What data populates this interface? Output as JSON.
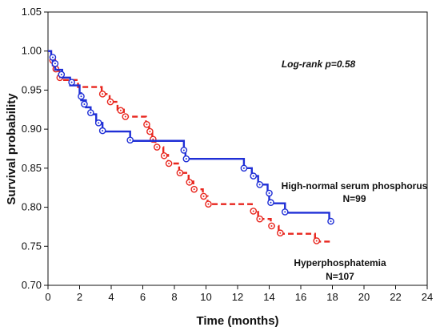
{
  "chart_data": {
    "type": "line",
    "subtype": "kaplan-meier step",
    "xlabel": "Time (months)",
    "ylabel": "Survival probability",
    "xlim": [
      0,
      24
    ],
    "ylim": [
      0.7,
      1.05
    ],
    "x_ticks": [
      "0",
      "2",
      "4",
      "6",
      "8",
      "10",
      "12",
      "14",
      "16",
      "18",
      "20",
      "22",
      "24"
    ],
    "y_ticks": [
      "0.70",
      "0.75",
      "0.80",
      "0.85",
      "0.90",
      "0.95",
      "1.00",
      "1.05"
    ],
    "grid": false,
    "annotations": {
      "pvalue": "Log-rank p=0.58",
      "series1_label_line1": "High-normal serum phosphorus",
      "series1_label_line2": "N=99",
      "series2_label_line1": "Hyperphosphatemia",
      "series2_label_line2": "N=107"
    },
    "series": [
      {
        "color": "#1f2fd6",
        "line_style": "solid",
        "steps": [
          [
            0,
            1.0
          ],
          [
            0.2,
            0.99
          ],
          [
            0.3,
            0.982
          ],
          [
            0.45,
            0.976
          ],
          [
            0.9,
            0.966
          ],
          [
            1.4,
            0.956
          ],
          [
            2.0,
            0.946
          ],
          [
            2.1,
            0.937
          ],
          [
            2.4,
            0.928
          ],
          [
            2.7,
            0.919
          ],
          [
            3.05,
            0.908
          ],
          [
            3.45,
            0.897
          ],
          [
            5.2,
            0.885
          ],
          [
            8.6,
            0.873
          ],
          [
            8.7,
            0.862
          ],
          [
            12.4,
            0.85
          ],
          [
            12.9,
            0.84
          ],
          [
            13.3,
            0.829
          ],
          [
            13.9,
            0.818
          ],
          [
            14.0,
            0.805
          ],
          [
            15.0,
            0.793
          ],
          [
            17.8,
            0.782
          ]
        ],
        "end_x": 18.0,
        "censored": [
          [
            0.3,
            0.992
          ],
          [
            0.45,
            0.984
          ],
          [
            0.85,
            0.97
          ],
          [
            1.5,
            0.96
          ],
          [
            2.1,
            0.942
          ],
          [
            2.3,
            0.932
          ],
          [
            2.7,
            0.921
          ],
          [
            3.2,
            0.908
          ],
          [
            3.45,
            0.898
          ],
          [
            5.2,
            0.886
          ],
          [
            8.6,
            0.873
          ],
          [
            8.75,
            0.862
          ],
          [
            12.4,
            0.85
          ],
          [
            13.0,
            0.84
          ],
          [
            13.4,
            0.829
          ],
          [
            14.0,
            0.818
          ],
          [
            14.1,
            0.806
          ],
          [
            15.0,
            0.794
          ],
          [
            17.9,
            0.782
          ]
        ]
      },
      {
        "color": "#e8261e",
        "line_style": "dashed",
        "steps": [
          [
            0,
            1.0
          ],
          [
            0.2,
            0.99
          ],
          [
            0.35,
            0.981
          ],
          [
            0.5,
            0.975
          ],
          [
            0.7,
            0.968
          ],
          [
            0.95,
            0.963
          ],
          [
            1.9,
            0.954
          ],
          [
            3.4,
            0.945
          ],
          [
            3.9,
            0.935
          ],
          [
            4.4,
            0.925
          ],
          [
            4.8,
            0.916
          ],
          [
            6.2,
            0.906
          ],
          [
            6.4,
            0.897
          ],
          [
            6.6,
            0.887
          ],
          [
            6.8,
            0.877
          ],
          [
            7.3,
            0.867
          ],
          [
            7.6,
            0.856
          ],
          [
            8.3,
            0.844
          ],
          [
            8.9,
            0.833
          ],
          [
            9.2,
            0.823
          ],
          [
            9.8,
            0.814
          ],
          [
            10.1,
            0.804
          ],
          [
            12.9,
            0.794
          ],
          [
            13.3,
            0.785
          ],
          [
            14.1,
            0.776
          ],
          [
            14.6,
            0.766
          ],
          [
            16.9,
            0.756
          ]
        ],
        "end_x": 18.0,
        "censored": [
          [
            0.3,
            0.988
          ],
          [
            0.5,
            0.977
          ],
          [
            0.75,
            0.966
          ],
          [
            3.45,
            0.945
          ],
          [
            3.95,
            0.935
          ],
          [
            4.6,
            0.924
          ],
          [
            4.9,
            0.916
          ],
          [
            6.25,
            0.906
          ],
          [
            6.45,
            0.897
          ],
          [
            6.65,
            0.887
          ],
          [
            6.9,
            0.877
          ],
          [
            7.35,
            0.866
          ],
          [
            7.65,
            0.856
          ],
          [
            8.35,
            0.844
          ],
          [
            8.95,
            0.832
          ],
          [
            9.25,
            0.823
          ],
          [
            9.85,
            0.814
          ],
          [
            10.15,
            0.804
          ],
          [
            13.0,
            0.795
          ],
          [
            13.4,
            0.785
          ],
          [
            14.15,
            0.776
          ],
          [
            14.7,
            0.767
          ],
          [
            17.0,
            0.757
          ]
        ]
      }
    ]
  }
}
